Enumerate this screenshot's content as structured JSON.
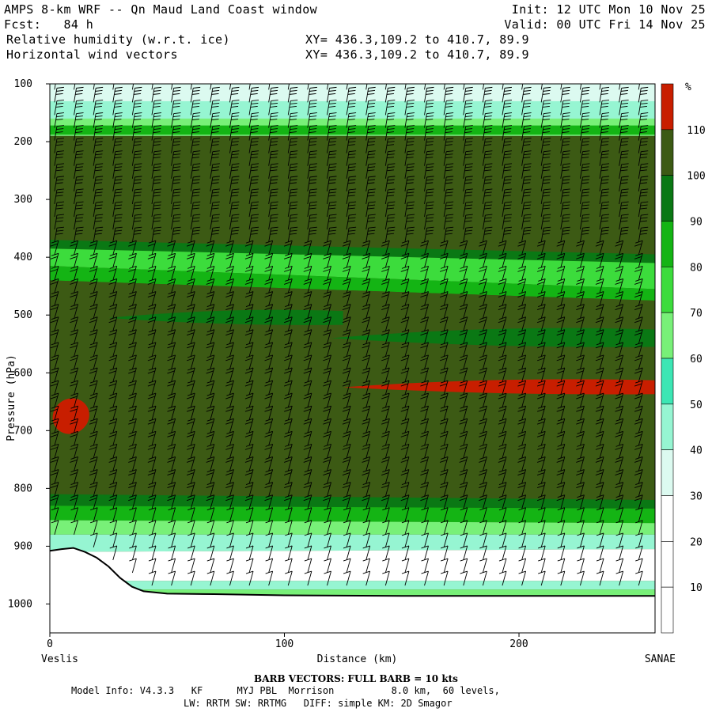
{
  "header": {
    "line1_left": "AMPS 8-km WRF -- Qn Maud Land Coast window",
    "line1_right": "Init: 12 UTC Mon 10 Nov 25",
    "line2_left": "Fcst:   84 h",
    "line2_right": "Valid: 00 UTC Fri 14 Nov 25",
    "line3_left": "Relative humidity (w.r.t. ice)",
    "line3_mid": "XY= 436.3,109.2 to 410.7, 89.9",
    "line4_left": "Horizontal wind vectors",
    "line4_mid": "XY= 436.3,109.2 to 410.7, 89.9"
  },
  "footer": {
    "barb_note": "BARB VECTORS:  FULL BARB = 10 kts",
    "model_info": "Model Info: V4.3.3   KF      MYJ PBL  Morrison          8.0 km,  60 levels,",
    "physics": "LW: RRTM SW: RRTMG   DIFF: simple KM: 2D Smagor"
  },
  "colors": {
    "very_dry": "#ffffff",
    "pale": "#dcfaf0",
    "aqua": "#96f5d2",
    "teal": "#3ce6b4",
    "light_green": "#78f078",
    "bright_green": "#3cdc3c",
    "green": "#14b414",
    "dark_green": "#0a7814",
    "olive": "#3c5a14",
    "red": "#c81e00"
  },
  "chart_data": {
    "type": "heatmap",
    "title": "Relative humidity (w.r.t. ice)",
    "xlabel": "Distance (km)",
    "ylabel": "Pressure (hPa)",
    "xlim": [
      0,
      258
    ],
    "ylim": [
      1050,
      100
    ],
    "x_ticks": [
      0,
      100,
      200
    ],
    "y_ticks": [
      100,
      200,
      300,
      400,
      500,
      600,
      700,
      800,
      900,
      1000
    ],
    "endpoint_left": "Veslis",
    "endpoint_right": "SANAE",
    "colorbar": {
      "unit": "%",
      "levels": [
        10,
        20,
        30,
        40,
        50,
        60,
        70,
        80,
        90,
        100,
        110
      ],
      "colors": [
        "#ffffff",
        "#ffffff",
        "#ffffff",
        "#dcfaf0",
        "#96f5d2",
        "#3ce6b4",
        "#78f078",
        "#3cdc3c",
        "#14b414",
        "#0a7814",
        "#3c5a14",
        "#c81e00"
      ]
    },
    "terrain_pressure": [
      [
        0,
        908
      ],
      [
        5,
        905
      ],
      [
        10,
        903
      ],
      [
        15,
        910
      ],
      [
        20,
        920
      ],
      [
        25,
        935
      ],
      [
        30,
        955
      ],
      [
        35,
        970
      ],
      [
        40,
        978
      ],
      [
        50,
        982
      ],
      [
        70,
        983
      ],
      [
        100,
        985
      ],
      [
        150,
        986
      ],
      [
        200,
        986
      ],
      [
        258,
        986
      ]
    ],
    "bands": [
      {
        "rh": 30,
        "x": [
          0,
          258
        ],
        "top": [
          100,
          100
        ],
        "bottom": [
          195,
          195
        ]
      },
      {
        "rh": 40,
        "x": [
          0,
          258
        ],
        "top": [
          130,
          130
        ],
        "bottom": [
          192,
          192
        ]
      },
      {
        "rh": 60,
        "x": [
          0,
          258
        ],
        "top": [
          160,
          160
        ],
        "bottom": [
          190,
          190
        ]
      },
      {
        "rh": 80,
        "x": [
          0,
          258
        ],
        "top": [
          172,
          172
        ],
        "bottom": [
          188,
          188
        ]
      },
      {
        "rh": 100,
        "x": [
          0,
          258
        ],
        "top": [
          190,
          190
        ],
        "bottom": [
          196,
          196
        ]
      },
      {
        "rh": 105,
        "x": [
          0,
          258
        ],
        "top": [
          196,
          196
        ],
        "bottom": [
          375,
          395
        ]
      },
      {
        "rh": 90,
        "x": [
          0,
          258
        ],
        "top": [
          370,
          395
        ],
        "bottom": [
          385,
          410
        ]
      },
      {
        "rh": 75,
        "x": [
          0,
          258
        ],
        "top": [
          385,
          410
        ],
        "bottom": [
          415,
          455
        ]
      },
      {
        "rh": 85,
        "x": [
          0,
          258
        ],
        "top": [
          415,
          455
        ],
        "bottom": [
          440,
          475
        ]
      },
      {
        "rh": 105,
        "x": [
          0,
          258
        ],
        "top": [
          440,
          475
        ],
        "bottom": [
          810,
          820
        ]
      },
      {
        "rh": 90,
        "x": [
          0,
          258
        ],
        "top": [
          810,
          820
        ],
        "bottom": [
          830,
          835
        ]
      },
      {
        "rh": 80,
        "x": [
          0,
          258
        ],
        "top": [
          830,
          835
        ],
        "bottom": [
          855,
          860
        ]
      },
      {
        "rh": 60,
        "x": [
          0,
          258
        ],
        "top": [
          855,
          860
        ],
        "bottom": [
          880,
          880
        ]
      },
      {
        "rh": 40,
        "x": [
          0,
          258
        ],
        "top": [
          880,
          880
        ],
        "bottom": [
          910,
          905
        ]
      },
      {
        "rh": 20,
        "x": [
          0,
          258
        ],
        "top": [
          910,
          905
        ],
        "bottom": [
          960,
          960
        ]
      },
      {
        "rh": 40,
        "x": [
          0,
          258
        ],
        "top": [
          960,
          960
        ],
        "bottom": [
          975,
          975
        ]
      },
      {
        "rh": 60,
        "x": [
          0,
          258
        ],
        "top": [
          975,
          975
        ],
        "bottom": [
          990,
          990
        ]
      }
    ],
    "features": [
      {
        "rh": 90,
        "type": "tongue",
        "x": [
          25,
          125
        ],
        "p_center": 505,
        "p_half": 12
      },
      {
        "rh": 90,
        "type": "tongue",
        "x": [
          120,
          258
        ],
        "p_center": 540,
        "p_half": 15
      },
      {
        "rh": 115,
        "type": "tongue",
        "x": [
          125,
          258
        ],
        "p_center": 625,
        "p_half": 12
      },
      {
        "rh": 115,
        "type": "blob",
        "x": 9,
        "p": 675,
        "rx_km": 8,
        "rp_hpa": 30
      }
    ],
    "wind_barbs": {
      "note": "Wind barbs spaced ~8 km across section, ~22 hPa in vertical",
      "x_spacing_km": 8.3,
      "p_spacing_hpa": 22
    }
  }
}
